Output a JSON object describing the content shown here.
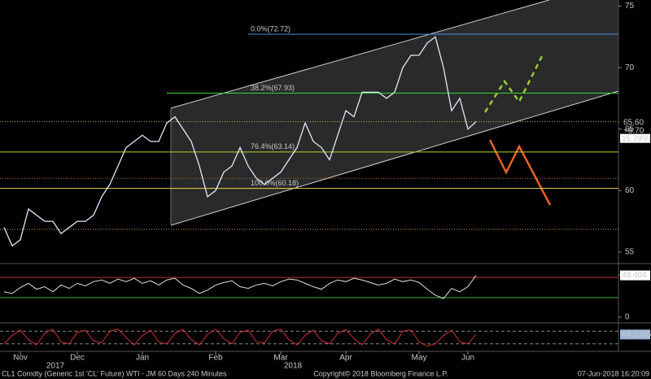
{
  "chart_data": [
    {
      "type": "line",
      "ylim": [
        54.2,
        75.5
      ],
      "yticks": [
        55,
        60,
        65,
        70,
        75
      ],
      "color": "#dfeaff",
      "values": [
        57,
        55.5,
        56,
        58.5,
        58,
        57.5,
        57.5,
        56.5,
        57,
        57.5,
        57.5,
        58,
        59.5,
        60.5,
        62,
        63.5,
        64,
        64.5,
        64,
        64,
        65.5,
        66,
        65,
        64,
        62,
        59.5,
        60,
        61.5,
        62,
        63.5,
        62,
        61,
        60.5,
        61,
        61.5,
        62.5,
        63.5,
        65.5,
        64,
        63.5,
        62.5,
        64.5,
        66.5,
        66,
        68,
        68,
        68,
        67.5,
        68,
        70,
        71,
        71,
        72,
        72.5,
        70,
        66.5,
        67.5,
        65,
        65.6,
        null,
        null,
        null,
        null,
        null,
        null,
        null,
        null,
        null,
        null,
        null,
        null,
        null,
        null,
        null,
        null,
        null
      ],
      "fib_levels": [
        {
          "label": "0.0%(72.72)",
          "value": 72.72,
          "color": "#4a90e2"
        },
        {
          "label": "38.2%(67.93)",
          "value": 67.93,
          "color": "#33d633"
        },
        {
          "label": "76.4%(63.14)",
          "value": 63.14,
          "color": "#a8d830"
        },
        {
          "label": "100.0%(60.18)",
          "value": 60.18,
          "color": "#e8d84a"
        }
      ],
      "dotted_levels": [
        {
          "value": 65.6,
          "color": "#c8b860"
        },
        {
          "value": 61,
          "color": "#c87830"
        },
        {
          "value": 56.85,
          "color": "#c8a040"
        }
      ],
      "last_label": "65.60",
      "change": "+8.70",
      "change_pct": "15.29%"
    },
    {
      "type": "line",
      "ylim": [
        -5.8,
        59.6
      ],
      "yticks": [
        0,
        50
      ],
      "color": "#e0e0e0",
      "ref_lines": [
        {
          "value": 47,
          "color": "#c83232"
        },
        {
          "value": 23,
          "color": "#32b432"
        }
      ],
      "values": [
        30,
        28,
        35,
        40,
        33,
        36,
        30,
        38,
        34,
        40,
        37,
        42,
        44,
        40,
        45,
        42,
        46,
        40,
        43,
        38,
        44,
        46,
        38,
        34,
        28,
        32,
        38,
        41,
        43,
        36,
        34,
        38,
        40,
        37,
        42,
        45,
        44,
        40,
        36,
        33,
        40,
        44,
        42,
        46,
        44,
        41,
        38,
        40,
        45,
        42,
        44,
        41,
        33,
        26,
        22,
        34,
        30,
        36,
        49.404,
        null,
        null,
        null,
        null,
        null,
        null,
        null,
        null,
        null,
        null,
        null,
        null,
        null,
        null,
        null,
        null,
        null
      ]
    },
    {
      "type": "line",
      "ylim": [
        0,
        100
      ],
      "color": "#d03030",
      "ref_lines": [
        {
          "value": 80,
          "color": "#888888"
        },
        {
          "value": 20,
          "color": "#888888"
        }
      ],
      "values": [
        20,
        60,
        85,
        40,
        15,
        70,
        90,
        30,
        20,
        75,
        85,
        35,
        25,
        80,
        90,
        50,
        15,
        60,
        85,
        30,
        20,
        70,
        88,
        40,
        15,
        65,
        90,
        45,
        20,
        75,
        85,
        30,
        25,
        80,
        90,
        40,
        15,
        60,
        85,
        35,
        20,
        70,
        88,
        45,
        15,
        65,
        90,
        40,
        20,
        80,
        85,
        30,
        10,
        20,
        60,
        85,
        30,
        20,
        64.3165,
        null,
        null,
        null,
        null,
        null,
        null,
        null,
        null,
        null,
        null,
        null,
        null,
        null,
        null,
        null,
        null,
        null
      ],
      "categories": [
        null,
        null,
        "Nov",
        null,
        null,
        null,
        null,
        null,
        null,
        "Dec",
        null,
        null,
        null,
        null,
        null,
        null,
        null,
        "Jan",
        null,
        null,
        null,
        null,
        null,
        null,
        null,
        null,
        "Feb",
        null,
        null,
        null,
        null,
        null,
        null,
        null,
        "Mar",
        null,
        null,
        null,
        null,
        null,
        null,
        null,
        "Apr",
        null,
        null,
        null,
        null,
        null,
        null,
        null,
        null,
        "May",
        null,
        null,
        null,
        null,
        null,
        "Jun",
        null,
        null,
        null,
        null,
        null,
        null,
        null,
        null,
        null,
        null,
        null,
        null,
        null,
        null,
        null,
        null,
        null,
        null
      ],
      "x_year_labels": [
        "2017",
        "2018"
      ]
    }
  ],
  "footer": {
    "left": "CL1 Comdty (Generic 1st 'CL' Future) WTI - JM 60 Days 240 Minutes",
    "center": "Copyright© 2018 Bloomberg Finance L.P.",
    "right": "07-Jun-2018 16:20:09"
  }
}
